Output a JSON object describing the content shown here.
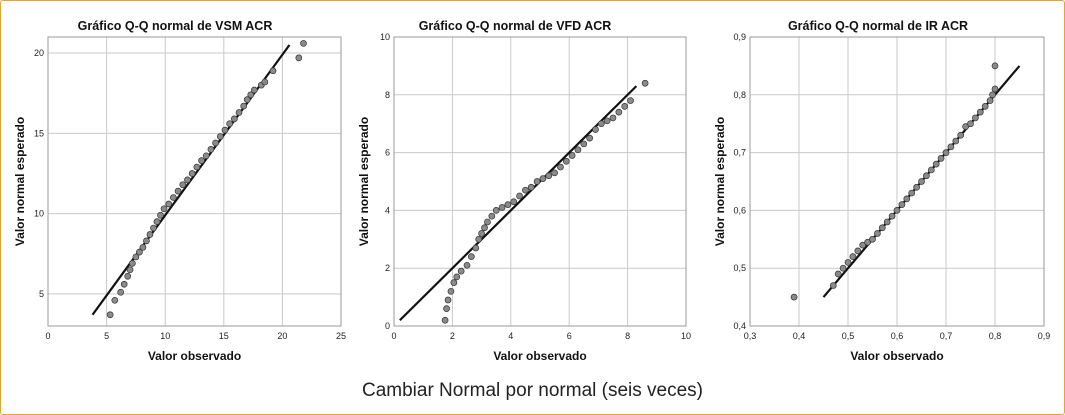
{
  "caption": "Cambiar Normal por normal (seis veces)",
  "colors": {
    "border": "#e6a433",
    "points": "#8a8a8a",
    "line": "#111111",
    "grid": "#c9c9c9"
  },
  "chart_data": [
    {
      "type": "scatter",
      "title": "Gráfico Q-Q normal de VSM ACR",
      "xlabel": "Valor observado",
      "ylabel": "Valor normal esperado",
      "xlim": [
        0,
        25
      ],
      "ylim": [
        3,
        21
      ],
      "xticks": [
        0,
        5,
        10,
        15,
        20,
        25
      ],
      "yticks": [
        5,
        10,
        15,
        20
      ],
      "xticklabels": [
        "0",
        "5",
        "10",
        "15",
        "20",
        "25"
      ],
      "yticklabels": [
        "5",
        "10",
        "15",
        "20"
      ],
      "reference_line": [
        [
          3.8,
          3.7
        ],
        [
          20.6,
          20.5
        ]
      ],
      "points": [
        [
          5.3,
          3.7
        ],
        [
          5.7,
          4.6
        ],
        [
          6.2,
          5.1
        ],
        [
          6.5,
          5.6
        ],
        [
          6.8,
          6.1
        ],
        [
          7.0,
          6.5
        ],
        [
          7.2,
          6.9
        ],
        [
          7.5,
          7.3
        ],
        [
          7.8,
          7.6
        ],
        [
          8.1,
          7.9
        ],
        [
          8.4,
          8.3
        ],
        [
          8.7,
          8.7
        ],
        [
          9.0,
          9.1
        ],
        [
          9.3,
          9.5
        ],
        [
          9.6,
          9.9
        ],
        [
          9.9,
          10.3
        ],
        [
          10.3,
          10.6
        ],
        [
          10.7,
          11.0
        ],
        [
          11.1,
          11.4
        ],
        [
          11.5,
          11.8
        ],
        [
          11.9,
          12.1
        ],
        [
          12.3,
          12.5
        ],
        [
          12.7,
          12.9
        ],
        [
          13.1,
          13.3
        ],
        [
          13.5,
          13.6
        ],
        [
          13.9,
          14.0
        ],
        [
          14.3,
          14.4
        ],
        [
          14.7,
          14.8
        ],
        [
          15.1,
          15.2
        ],
        [
          15.5,
          15.6
        ],
        [
          15.9,
          15.9
        ],
        [
          16.3,
          16.3
        ],
        [
          16.7,
          16.7
        ],
        [
          17.0,
          17.1
        ],
        [
          17.3,
          17.4
        ],
        [
          17.6,
          17.7
        ],
        [
          18.2,
          18.0
        ],
        [
          18.5,
          18.2
        ],
        [
          19.2,
          18.9
        ],
        [
          21.4,
          19.7
        ],
        [
          21.8,
          20.6
        ]
      ]
    },
    {
      "type": "scatter",
      "title": "Gráfico Q-Q normal de",
      "title_suffix": "VFD ACR",
      "xlabel": "Valor observado",
      "ylabel": "Valor normal esperado",
      "xlim": [
        0,
        10
      ],
      "ylim": [
        0,
        10
      ],
      "xticks": [
        0,
        2,
        4,
        6,
        8,
        10
      ],
      "yticks": [
        0,
        2,
        4,
        6,
        8,
        10
      ],
      "xticklabels": [
        "0",
        "2",
        "4",
        "6",
        "8",
        "10"
      ],
      "yticklabels": [
        "0",
        "2",
        "4",
        "6",
        "8",
        "10"
      ],
      "reference_line": [
        [
          0.2,
          0.2
        ],
        [
          8.3,
          8.3
        ]
      ],
      "points": [
        [
          1.75,
          0.2
        ],
        [
          1.8,
          0.6
        ],
        [
          1.85,
          0.9
        ],
        [
          1.95,
          1.2
        ],
        [
          2.05,
          1.5
        ],
        [
          2.15,
          1.7
        ],
        [
          2.3,
          1.9
        ],
        [
          2.5,
          2.1
        ],
        [
          2.65,
          2.4
        ],
        [
          2.8,
          2.7
        ],
        [
          2.9,
          3.0
        ],
        [
          3.0,
          3.2
        ],
        [
          3.1,
          3.4
        ],
        [
          3.2,
          3.6
        ],
        [
          3.35,
          3.8
        ],
        [
          3.5,
          4.0
        ],
        [
          3.7,
          4.1
        ],
        [
          3.9,
          4.2
        ],
        [
          4.1,
          4.3
        ],
        [
          4.3,
          4.5
        ],
        [
          4.5,
          4.7
        ],
        [
          4.7,
          4.8
        ],
        [
          4.9,
          5.0
        ],
        [
          5.1,
          5.1
        ],
        [
          5.3,
          5.2
        ],
        [
          5.5,
          5.3
        ],
        [
          5.7,
          5.5
        ],
        [
          5.9,
          5.7
        ],
        [
          6.1,
          5.9
        ],
        [
          6.3,
          6.1
        ],
        [
          6.5,
          6.3
        ],
        [
          6.7,
          6.5
        ],
        [
          6.9,
          6.8
        ],
        [
          7.1,
          7.0
        ],
        [
          7.3,
          7.1
        ],
        [
          7.5,
          7.2
        ],
        [
          7.7,
          7.4
        ],
        [
          7.9,
          7.6
        ],
        [
          8.1,
          7.8
        ],
        [
          8.6,
          8.4
        ]
      ]
    },
    {
      "type": "scatter",
      "title": "Gráfico Q-Q normal de IR ACR",
      "xlabel": "Valor observado",
      "ylabel": "Valor normal esperado",
      "xlim": [
        0.3,
        0.9
      ],
      "ylim": [
        0.4,
        0.9
      ],
      "xticks": [
        0.3,
        0.4,
        0.5,
        0.6,
        0.7,
        0.8,
        0.9
      ],
      "yticks": [
        0.4,
        0.5,
        0.6,
        0.7,
        0.8,
        0.9
      ],
      "xticklabels": [
        "0,3",
        "0,4",
        "0,5",
        "0,6",
        "0,7",
        "0,8",
        "0,9"
      ],
      "yticklabels": [
        "0,4",
        "0,5",
        "0,6",
        "0,7",
        "0,8",
        "0,9"
      ],
      "reference_line": [
        [
          0.45,
          0.45
        ],
        [
          0.85,
          0.85
        ]
      ],
      "points": [
        [
          0.39,
          0.45
        ],
        [
          0.47,
          0.47
        ],
        [
          0.48,
          0.49
        ],
        [
          0.49,
          0.5
        ],
        [
          0.5,
          0.51
        ],
        [
          0.51,
          0.52
        ],
        [
          0.52,
          0.53
        ],
        [
          0.53,
          0.54
        ],
        [
          0.54,
          0.545
        ],
        [
          0.55,
          0.55
        ],
        [
          0.56,
          0.56
        ],
        [
          0.57,
          0.57
        ],
        [
          0.58,
          0.58
        ],
        [
          0.59,
          0.59
        ],
        [
          0.6,
          0.6
        ],
        [
          0.61,
          0.61
        ],
        [
          0.62,
          0.62
        ],
        [
          0.63,
          0.63
        ],
        [
          0.64,
          0.64
        ],
        [
          0.65,
          0.65
        ],
        [
          0.66,
          0.66
        ],
        [
          0.67,
          0.67
        ],
        [
          0.68,
          0.68
        ],
        [
          0.69,
          0.69
        ],
        [
          0.7,
          0.7
        ],
        [
          0.71,
          0.71
        ],
        [
          0.72,
          0.72
        ],
        [
          0.73,
          0.73
        ],
        [
          0.74,
          0.745
        ],
        [
          0.75,
          0.75
        ],
        [
          0.76,
          0.76
        ],
        [
          0.77,
          0.77
        ],
        [
          0.78,
          0.78
        ],
        [
          0.79,
          0.79
        ],
        [
          0.795,
          0.8
        ],
        [
          0.8,
          0.81
        ],
        [
          0.8,
          0.85
        ]
      ]
    }
  ]
}
